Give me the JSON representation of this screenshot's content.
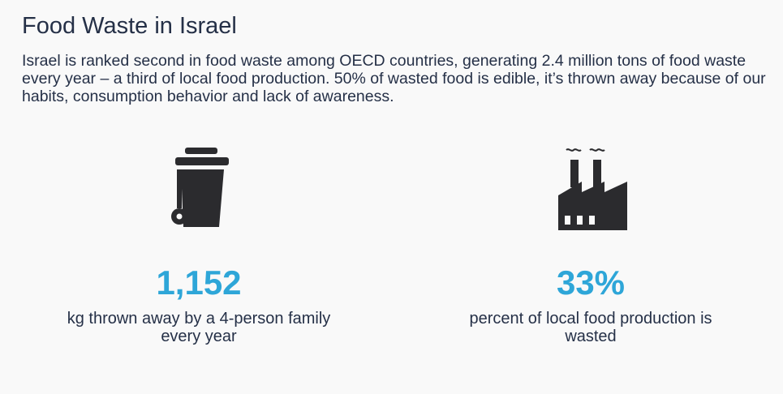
{
  "header": {
    "title": "Food Waste in Israel",
    "intro": "Israel is ranked second in food waste among OECD countries, generating 2.4 million tons of food waste every year – a third of local food production. 50% of wasted food is edible, it’s thrown away because of our habits, consumption behavior and lack of awareness."
  },
  "stats": [
    {
      "icon": "trash-bin-icon",
      "value": "1,152",
      "caption": "kg thrown away by a 4-person family every year"
    },
    {
      "icon": "factory-icon",
      "value": "33%",
      "caption": "percent of local food production is wasted"
    }
  ],
  "colors": {
    "background": "#f9f9f9",
    "text": "#253047",
    "accent": "#2ea6d8",
    "icon": "#2b2b2e"
  }
}
